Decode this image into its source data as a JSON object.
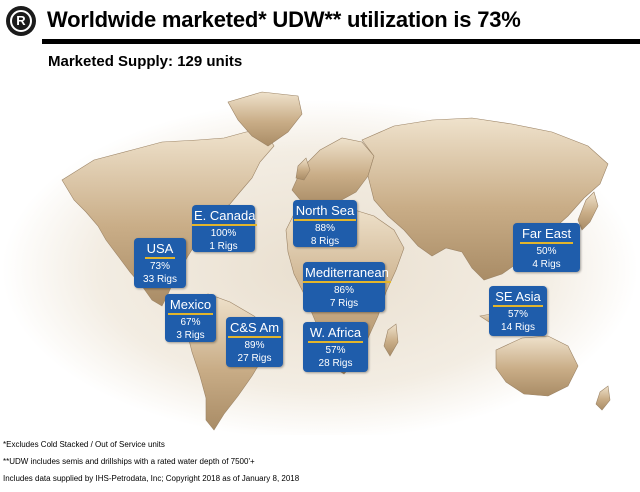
{
  "header": {
    "logo_letter": "R",
    "title": "Worldwide marketed* UDW** utilization is 73%",
    "subtitle": "Marketed Supply: 129 units"
  },
  "colors": {
    "box": "#1f5dab",
    "underline": "#e2b52c",
    "land": "#c8ad88",
    "ocean_glow": "#f5f1ea"
  },
  "regions": [
    {
      "name": "E. Canada",
      "utilization": "100%",
      "rigs": "1 Rigs"
    },
    {
      "name": "North Sea",
      "utilization": "88%",
      "rigs": "8 Rigs"
    },
    {
      "name": "USA",
      "utilization": "73%",
      "rigs": "33 Rigs"
    },
    {
      "name": "Far East",
      "utilization": "50%",
      "rigs": "4 Rigs"
    },
    {
      "name": "Mediterranean",
      "utilization": "86%",
      "rigs": "7 Rigs"
    },
    {
      "name": "Mexico",
      "utilization": "67%",
      "rigs": "3 Rigs"
    },
    {
      "name": "C&S Am",
      "utilization": "89%",
      "rigs": "27 Rigs"
    },
    {
      "name": "SE Asia",
      "utilization": "57%",
      "rigs": "14 Rigs"
    },
    {
      "name": "W. Africa",
      "utilization": "57%",
      "rigs": "28 Rigs"
    }
  ],
  "footnotes": [
    "*Excludes Cold Stacked / Out of Service units",
    "**UDW includes semis and drillships with a rated water depth of 7500'+",
    "Includes data supplied by IHS-Petrodata, Inc; Copyright 2018 as of January 8, 2018"
  ]
}
